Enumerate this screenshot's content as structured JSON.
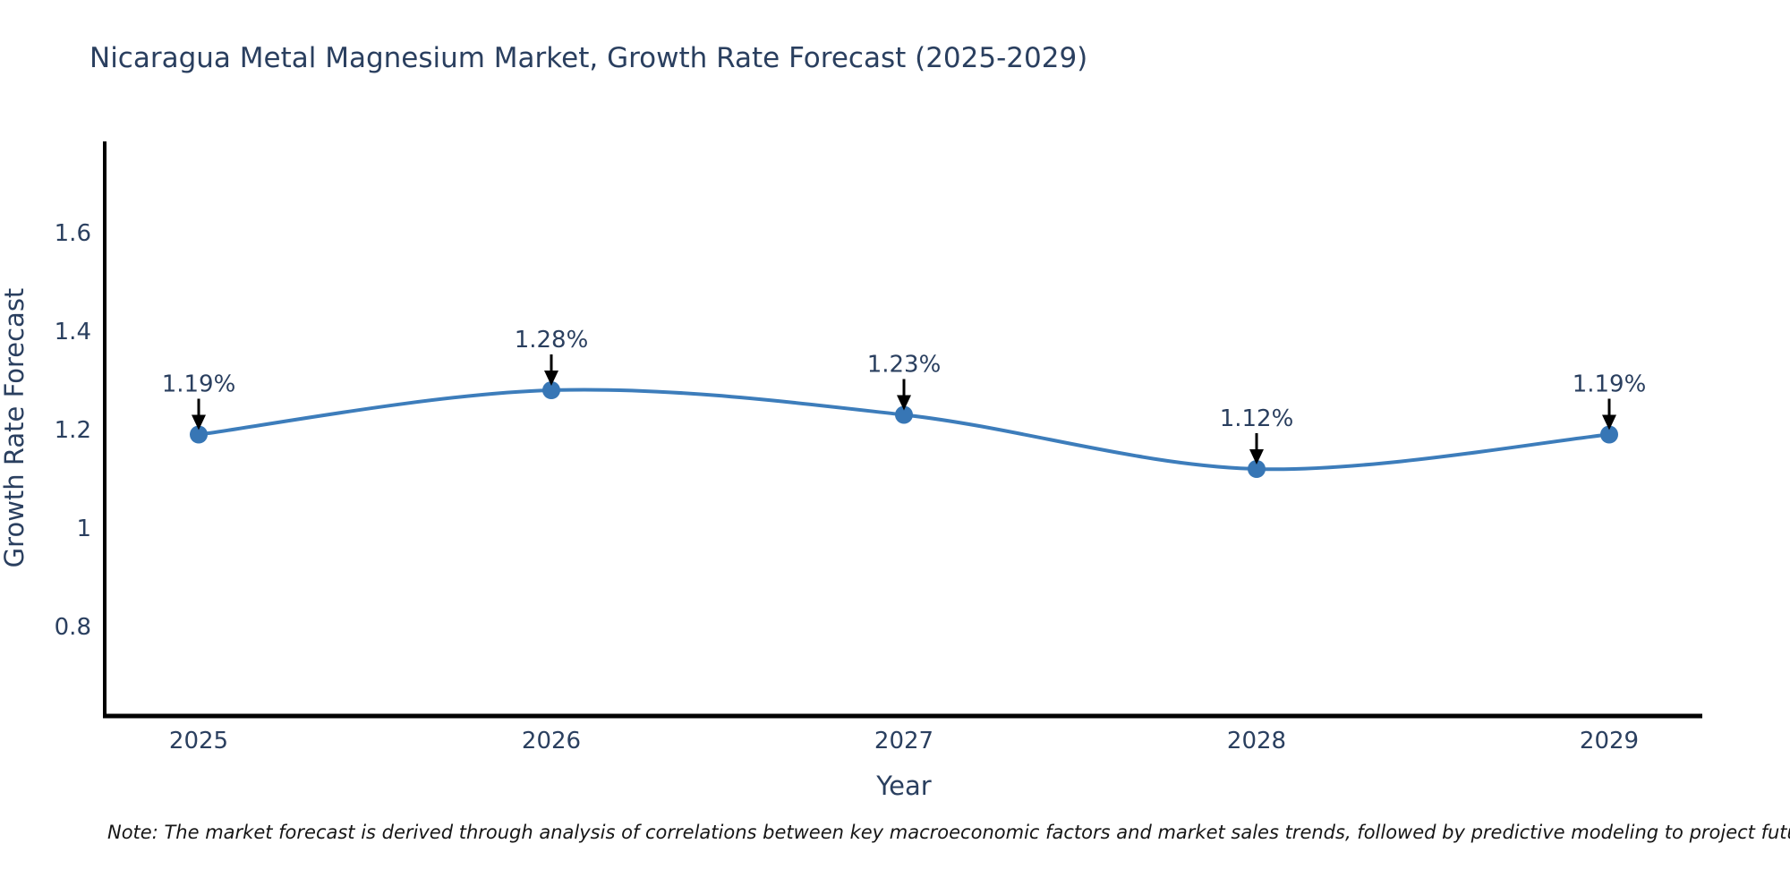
{
  "chart_title": "Nicaragua Metal Magnesium Market, Growth Rate Forecast (2025-2029)",
  "note": "Note: The market forecast is derived through analysis of correlations between key macroeconomic factors and market sales trends, followed by predictive modeling to project future sales",
  "chart_data": {
    "type": "line",
    "line_shape": "spline",
    "title": "Nicaragua Metal Magnesium Market, Growth Rate Forecast (2025-2029)",
    "xlabel": "Year",
    "ylabel": "Growth Rate Forecast",
    "x": [
      2025,
      2026,
      2027,
      2028,
      2029
    ],
    "x_tick_labels": [
      "2025",
      "2026",
      "2027",
      "2028",
      "2029"
    ],
    "series": [
      {
        "name": "Growth Rate Forecast",
        "values": [
          1.19,
          1.28,
          1.23,
          1.12,
          1.19
        ],
        "point_labels": [
          "1.19%",
          "1.28%",
          "1.23%",
          "1.12%",
          "1.19%"
        ]
      }
    ],
    "y_ticks": [
      1.6,
      1.4,
      1.2,
      1.0,
      0.8
    ],
    "y_tick_labels": [
      "1.6",
      "1.4",
      "1.2",
      "1",
      "0.8"
    ],
    "ylim": [
      0.62,
      1.78
    ],
    "grid": false,
    "legend_position": "none",
    "annotation_style": "value labels with black arrows pointing to markers",
    "colors": {
      "line": "#3d7dbb",
      "marker": "#3776b5",
      "axis": "#000000",
      "text": "#2a3f5f",
      "arrow": "#000000",
      "background": "#ffffff"
    }
  }
}
